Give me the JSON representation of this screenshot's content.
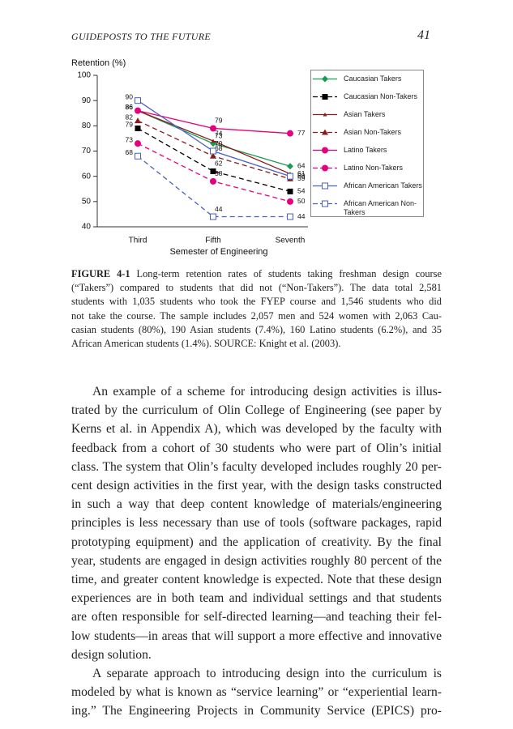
{
  "header": {
    "title": "GUIDEPOSTS TO THE FUTURE",
    "page_number": "41"
  },
  "chart_data": {
    "type": "line",
    "y_label": "Retention (%)",
    "x_label": "Semester of Engineering",
    "categories": [
      "Third",
      "Fifth",
      "Seventh"
    ],
    "ylim": [
      40,
      100
    ],
    "yticks": [
      40,
      50,
      60,
      70,
      80,
      90,
      100
    ],
    "series": [
      {
        "name": "Caucasian Takers",
        "color": "#1a9a50",
        "dashed": false,
        "marker": "diamond",
        "values": [
          86,
          73,
          64
        ]
      },
      {
        "name": "Caucasian Non-Takers",
        "color": "#000000",
        "dashed": true,
        "marker": "square",
        "values": [
          79,
          62,
          54
        ]
      },
      {
        "name": "Asian Takers",
        "color": "#8b1a1a",
        "dashed": false,
        "marker": "small-triangle",
        "values": [
          86,
          74,
          61
        ]
      },
      {
        "name": "Asian Non-Takers",
        "color": "#8b1a1a",
        "dashed": true,
        "marker": "triangle",
        "values": [
          82,
          68,
          59
        ]
      },
      {
        "name": "Latino Takers",
        "color": "#e6007e",
        "dashed": false,
        "marker": "circle",
        "values": [
          86,
          79,
          77
        ]
      },
      {
        "name": "Latino Non-Takers",
        "color": "#e6007e",
        "dashed": true,
        "marker": "circle",
        "values": [
          73,
          58,
          50
        ]
      },
      {
        "name": "African American Takers",
        "color": "#4a5fc1",
        "dashed": false,
        "marker": "open-square",
        "values": [
          90,
          70,
          60
        ]
      },
      {
        "name": "African American Non-Takers",
        "color": "#4a5fc1",
        "dashed": true,
        "marker": "open-square",
        "values": [
          68,
          44,
          44
        ]
      }
    ]
  },
  "caption": {
    "label": "FIGURE 4-1",
    "lines": [
      "Long-term retention rates of students taking freshman design course",
      "(“Takers”) compared to students that did not (“Non-Takers”). The data total 2,581",
      "students with 1,035 students who took the FYEP course and 1,546 students who did",
      "not take the course. The sample includes 2,057 men and 524 women with 2,063 Cau-",
      "casian students (80%), 190 Asian students (7.4%), 160 Latino students (6.2%), and 35",
      "African American students (1.4%). SOURCE: Knight et al. (2003)."
    ]
  },
  "body": [
    [
      "An example of a scheme for introducing design activities is illus-",
      "trated by the curriculum of Olin College of Engineering (see paper by",
      "Kerns et al. in Appendix A), which was developed by the faculty with",
      "feedback from a cohort of 30 students who were part of Olin’s initial",
      "class. The system that Olin’s faculty developed includes roughly 20 per-",
      "cent design activities in the first year, with the design tasks constructed",
      "in such a way that deep content knowledge of materials/engineering",
      "principles is less necessary than use of tools (software packages, rapid",
      "prototyping equipment) and the application of creativity. By the final",
      "year, students are engaged in design activities roughly 80 percent of the",
      "time, and greater content knowledge is expected. Note that these design",
      "experiences are in both team and individual settings and that students",
      "are often responsible for self-directed learning—and teaching their fel-",
      "low students—in areas that will support a more effective and innovative",
      "design solution."
    ],
    [
      "A separate approach to introducing design into the curriculum is",
      "modeled by what is known as “service learning” or “experiential learn-",
      "ing.” The Engineering Projects in Community Service (EPICS) pro-"
    ]
  ]
}
